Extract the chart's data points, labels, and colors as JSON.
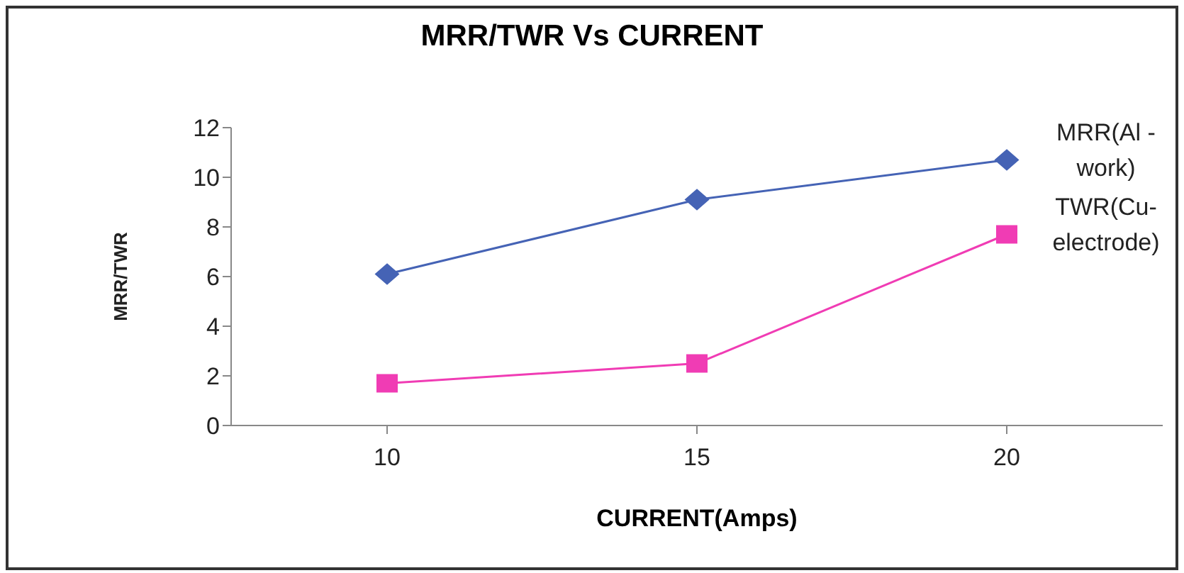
{
  "chart_data": {
    "type": "line",
    "title": "MRR/TWR Vs CURRENT",
    "xlabel": "CURRENT(Amps)",
    "ylabel": "MRR/TWR",
    "categories": [
      "10",
      "15",
      "20"
    ],
    "series": [
      {
        "name": "MRR(Al -work)",
        "color": "#4563b5",
        "values": [
          6.1,
          9.1,
          10.7
        ],
        "marker": "diamond"
      },
      {
        "name": "TWR(Cu-electrode)",
        "color": "#f03cb4",
        "values": [
          1.7,
          2.5,
          7.7
        ],
        "marker": "square"
      }
    ],
    "ylim": [
      0,
      12
    ],
    "yticks": [
      0,
      2,
      4,
      6,
      8,
      10,
      12
    ],
    "grid": false
  }
}
